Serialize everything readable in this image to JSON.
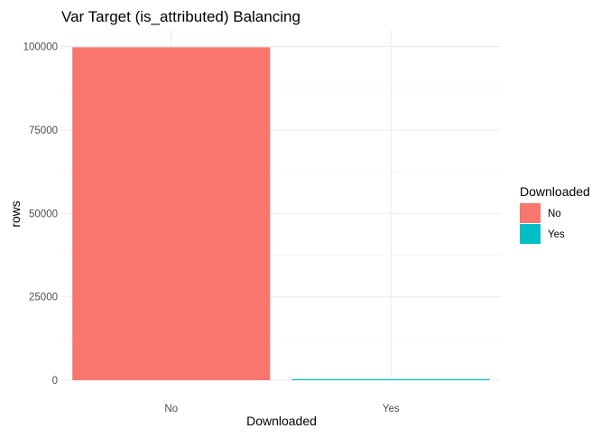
{
  "chart_data": {
    "type": "bar",
    "title": "Var Target (is_attributed) Balancing",
    "xlabel": "Downloaded",
    "ylabel": "rows",
    "categories": [
      "No",
      "Yes"
    ],
    "values": [
      99773,
      227
    ],
    "colors": [
      "#F8766D",
      "#00BFC4"
    ],
    "ylim": [
      0,
      104990
    ],
    "yticks": [
      0,
      25000,
      50000,
      75000,
      100000
    ],
    "ytick_labels": [
      "0",
      "25000",
      "50000",
      "75000",
      "100000"
    ],
    "grid": true,
    "legend": {
      "title": "Downloaded",
      "placement": "right",
      "entries": [
        "No",
        "Yes"
      ]
    }
  }
}
